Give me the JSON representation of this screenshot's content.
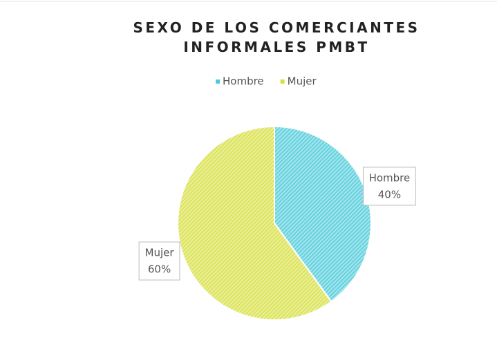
{
  "chart_data": {
    "type": "pie",
    "title": "SEXO DE LOS COMERCIANTES INFORMALES PMBT",
    "categories": [
      "Hombre",
      "Mujer"
    ],
    "values": [
      40,
      60
    ],
    "value_labels": [
      "40%",
      "60%"
    ],
    "colors": [
      "#4ecbdb",
      "#d6df3f"
    ],
    "legend": "top"
  }
}
